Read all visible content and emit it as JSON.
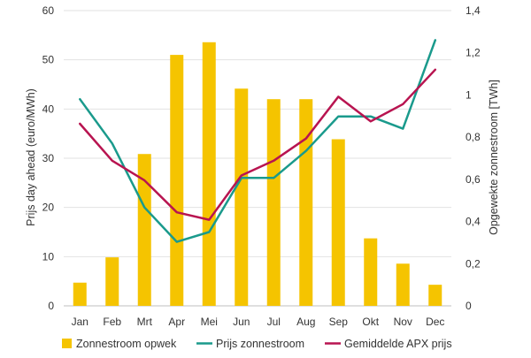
{
  "chart_data": {
    "type": "bar",
    "categories": [
      "Jan",
      "Feb",
      "Mrt",
      "Apr",
      "Mei",
      "Jun",
      "Jul",
      "Aug",
      "Sep",
      "Okt",
      "Nov",
      "Dec"
    ],
    "series": [
      {
        "name": "Zonnestroom opwek",
        "type": "bar",
        "axis": "right",
        "color": "#F5C400",
        "values": [
          0.11,
          0.23,
          0.72,
          1.19,
          1.25,
          1.03,
          0.98,
          0.98,
          0.79,
          0.32,
          0.2,
          0.1
        ]
      },
      {
        "name": "Prijs zonnestroom",
        "type": "line",
        "axis": "left",
        "color": "#1A9A8C",
        "values": [
          42,
          33,
          20,
          13,
          15,
          26,
          26,
          31.5,
          38.5,
          38.5,
          36,
          54
        ]
      },
      {
        "name": "Gemiddelde APX prijs",
        "type": "line",
        "axis": "left",
        "color": "#B81450",
        "values": [
          37,
          29.5,
          25.5,
          19,
          17.5,
          26.5,
          29.5,
          34,
          42.5,
          37.5,
          41,
          48
        ]
      }
    ],
    "y_left": {
      "label": "Prijs day ahead (euro/MWh)",
      "ylim": [
        0,
        60
      ],
      "ticks": [
        "0",
        "10",
        "20",
        "30",
        "40",
        "50",
        "60"
      ]
    },
    "y_right": {
      "label": "Opgewekte zonnestroom [TWh]",
      "ylim": [
        0,
        1.4
      ],
      "ticks": [
        "0",
        "0,2",
        "0,4",
        "0,6",
        "0,8",
        "1",
        "1,2",
        "1,4"
      ]
    },
    "grid": true,
    "legend_position": "bottom"
  }
}
